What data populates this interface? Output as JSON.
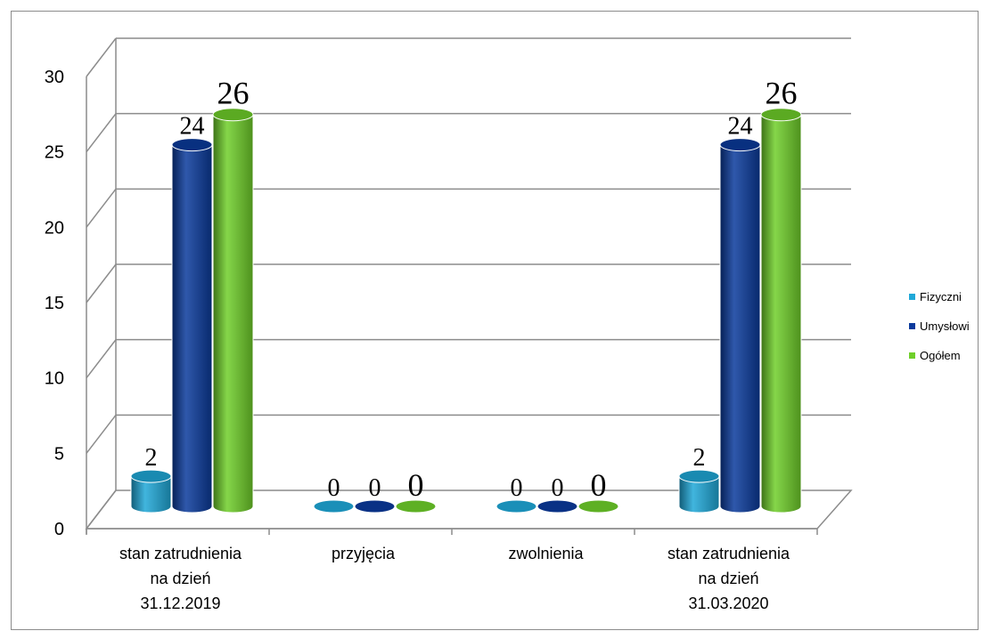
{
  "chart_data": {
    "type": "bar",
    "categories": [
      [
        "stan zatrudnienia",
        "na dzień",
        "31.12.2019"
      ],
      [
        "przyjęcia"
      ],
      [
        "zwolnienia"
      ],
      [
        "stan zatrudnienia",
        "na dzień",
        "31.03.2020"
      ]
    ],
    "series": [
      {
        "name": "Fizyczni",
        "values": [
          2,
          0,
          0,
          2
        ],
        "color": "#1fa8d8"
      },
      {
        "name": "Umysłowi",
        "values": [
          24,
          0,
          0,
          24
        ],
        "color": "#0a3a9c"
      },
      {
        "name": "Ogółem",
        "values": [
          26,
          0,
          0,
          26
        ],
        "color": "#6fcf2a"
      }
    ],
    "y_ticks": [
      "0",
      "5",
      "10",
      "15",
      "20",
      "25",
      "30"
    ],
    "ylim": [
      0,
      30
    ],
    "grid": true,
    "legend_position": "right",
    "chart_style": "3d-cylinder"
  }
}
